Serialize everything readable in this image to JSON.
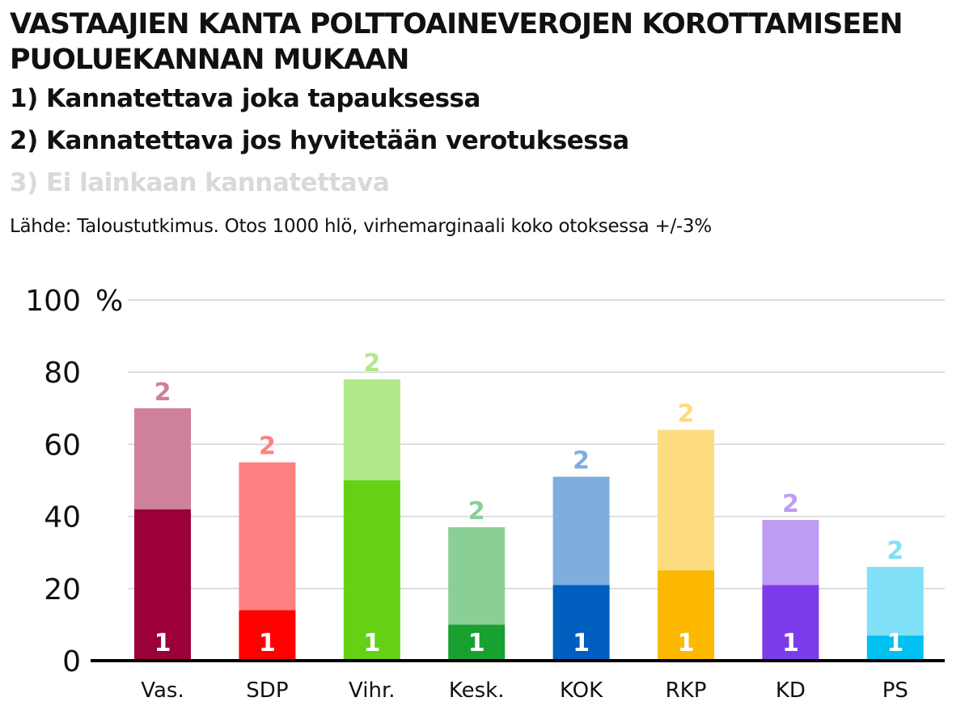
{
  "header": {
    "title": "VASTAAJIEN KANTA POLTTOAINEVEROJEN KOROTTAMISEEN PUOLUEKANNAN MUKAAN",
    "legend": [
      {
        "text": "1) Kannatettava joka tapauksessa",
        "color": "#111111"
      },
      {
        "text": "2) Kannatettava jos hyvitetään verotuksessa",
        "color": "#111111"
      },
      {
        "text": "3) Ei lainkaan kannatettava",
        "color": "#d9d9d9"
      }
    ],
    "source": "Lähde: Taloustutkimus. Otos 1000 hlö, virhemarginaali koko otoksessa +/-3%"
  },
  "chart_data": {
    "type": "bar",
    "stacked": true,
    "categories": [
      "Vas.",
      "SDP",
      "Vihr.",
      "Kesk.",
      "KOK",
      "RKP",
      "KD",
      "PS"
    ],
    "series": [
      {
        "name": "1",
        "values": [
          42,
          14,
          50,
          10,
          21,
          25,
          21,
          7
        ]
      },
      {
        "name": "2",
        "values": [
          28,
          41,
          28,
          27,
          30,
          39,
          18,
          19
        ]
      }
    ],
    "colors": {
      "series1": [
        "#9b0039",
        "#ff0000",
        "#64d114",
        "#18a030",
        "#005fbe",
        "#fcb900",
        "#7c3cea",
        "#00c1ef"
      ],
      "series2": [
        "#cf809c",
        "#ff8080",
        "#b1e889",
        "#8bcf97",
        "#7faede",
        "#fddc7f",
        "#bd9df4",
        "#7fe0f7"
      ]
    },
    "ylim": [
      0,
      100
    ],
    "yticks": [
      0,
      20,
      40,
      60,
      80,
      100
    ],
    "ytick_labels": [
      "0",
      "20",
      "40",
      "60",
      "80",
      "100"
    ],
    "yunit": "%",
    "grid": true
  }
}
